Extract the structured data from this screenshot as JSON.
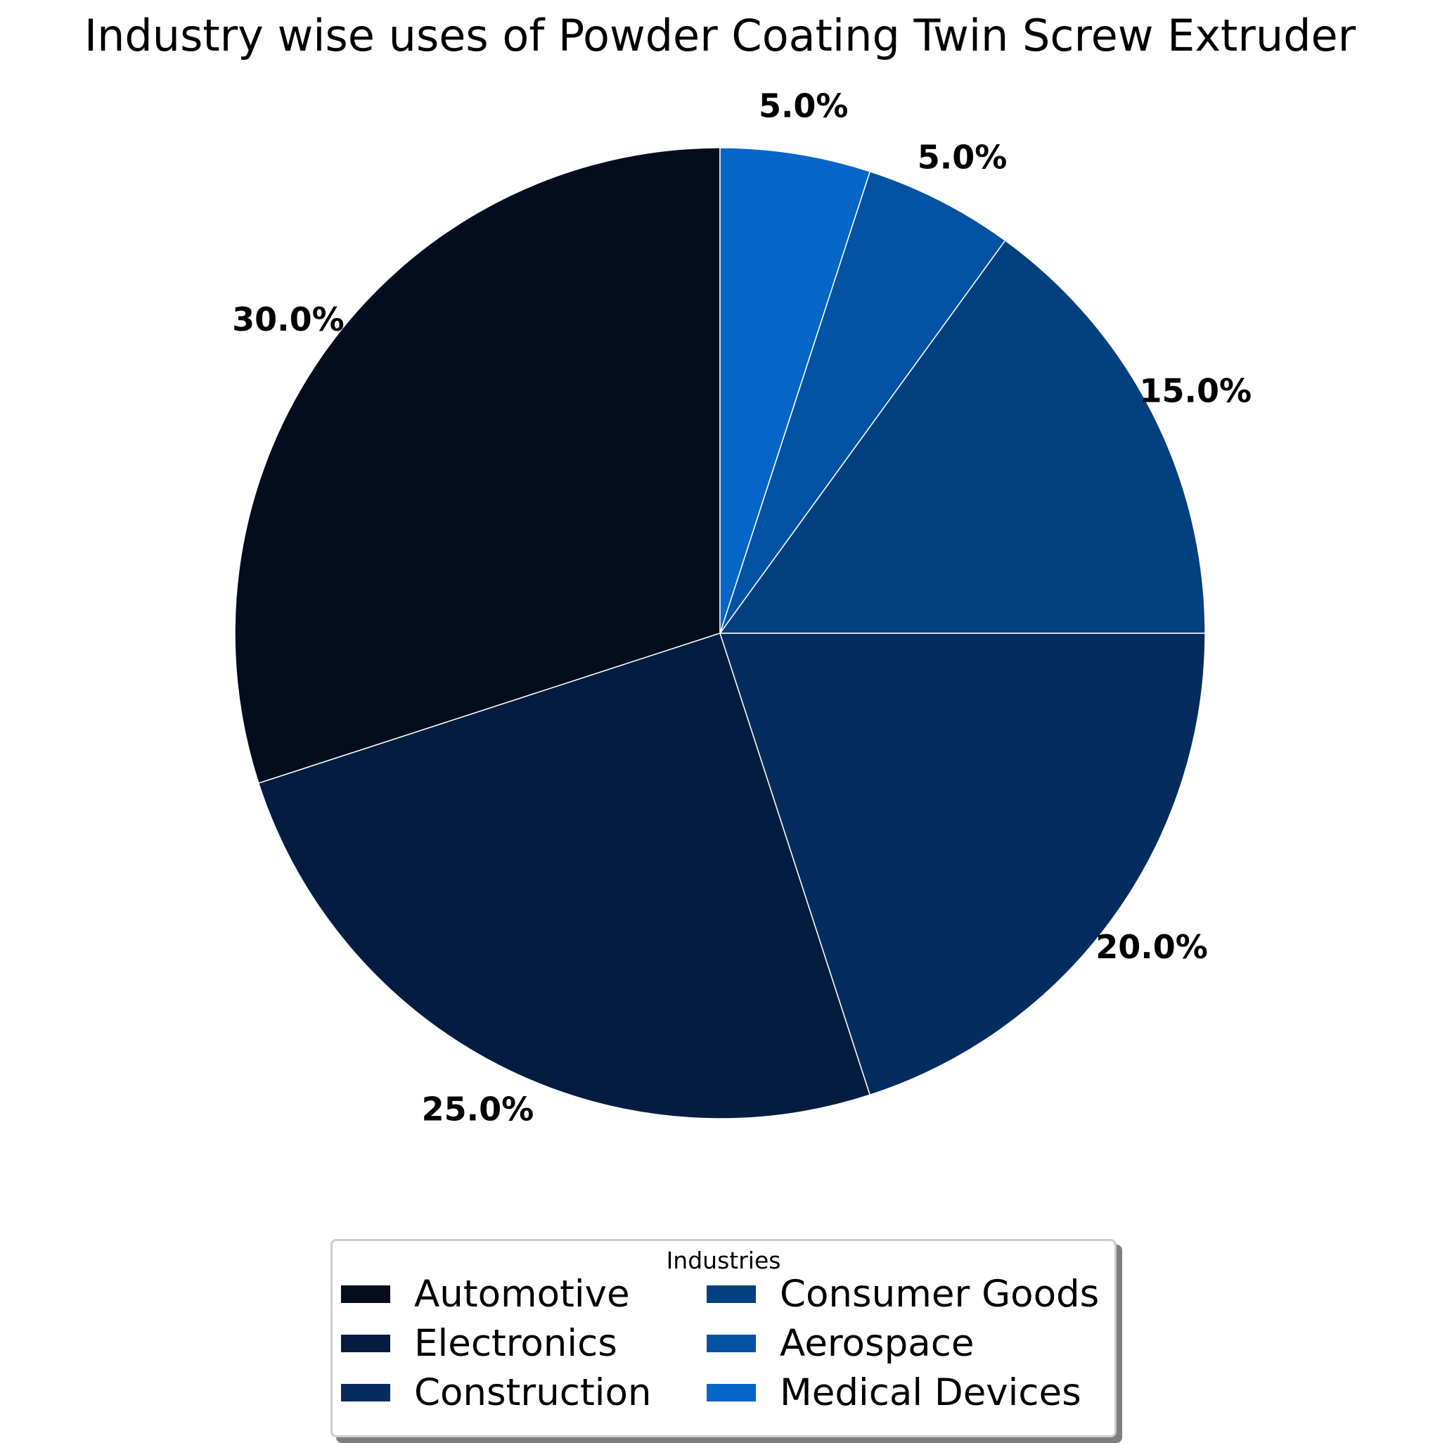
{
  "chart_data": {
    "type": "pie",
    "title": "Industry wise uses of Powder Coating Twin Screw Extruder",
    "categories": [
      "Automotive",
      "Electronics",
      "Construction",
      "Consumer Goods",
      "Aerospace",
      "Medical Devices"
    ],
    "values": [
      30,
      25,
      20,
      15,
      5,
      5
    ],
    "value_labels": [
      "30.0%",
      "25.0%",
      "20.0%",
      "15.0%",
      "5.0%",
      "5.0%"
    ],
    "colors": [
      "#030d1d",
      "#041c40",
      "#042c5e",
      "#03407f",
      "#0452a3",
      "#0566c8"
    ],
    "start_angle_deg": 90,
    "direction": "counterclockwise",
    "legend": {
      "title": "Industries",
      "placement": "bottom-center",
      "columns": 2
    }
  }
}
